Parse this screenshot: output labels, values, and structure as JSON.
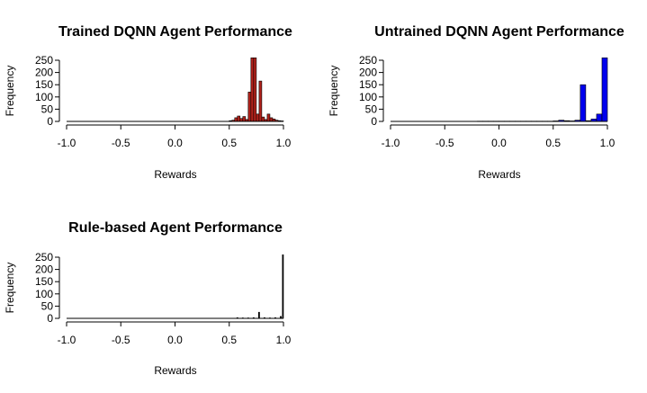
{
  "chart_data": [
    {
      "type": "histogram",
      "title": "Trained DQNN Agent Performance",
      "xlabel": "Rewards",
      "ylabel": "Frequency",
      "xlim": [
        -1.0,
        1.0
      ],
      "ylim": [
        0,
        250
      ],
      "x_ticks": [
        "-1.0",
        "-0.5",
        "0.0",
        "0.5",
        "1.0"
      ],
      "y_ticks": [
        "0",
        "50",
        "100",
        "150",
        "200",
        "250"
      ],
      "bar_color": "#b2221b",
      "bin_width": 0.025,
      "bins": [
        {
          "x0": 0.5,
          "count": 3
        },
        {
          "x0": 0.525,
          "count": 5
        },
        {
          "x0": 0.55,
          "count": 15
        },
        {
          "x0": 0.575,
          "count": 22
        },
        {
          "x0": 0.6,
          "count": 12
        },
        {
          "x0": 0.625,
          "count": 20
        },
        {
          "x0": 0.65,
          "count": 8
        },
        {
          "x0": 0.675,
          "count": 120
        },
        {
          "x0": 0.7,
          "count": 260
        },
        {
          "x0": 0.725,
          "count": 260
        },
        {
          "x0": 0.75,
          "count": 30
        },
        {
          "x0": 0.775,
          "count": 165
        },
        {
          "x0": 0.8,
          "count": 18
        },
        {
          "x0": 0.825,
          "count": 8
        },
        {
          "x0": 0.85,
          "count": 30
        },
        {
          "x0": 0.875,
          "count": 15
        },
        {
          "x0": 0.9,
          "count": 10
        },
        {
          "x0": 0.925,
          "count": 5
        },
        {
          "x0": 0.95,
          "count": 3
        },
        {
          "x0": 0.975,
          "count": 2
        }
      ]
    },
    {
      "type": "histogram",
      "title": "Untrained DQNN Agent Performance",
      "xlabel": "Rewards",
      "ylabel": "Frequency",
      "xlim": [
        -1.0,
        1.0
      ],
      "ylim": [
        0,
        250
      ],
      "x_ticks": [
        "-1.0",
        "-0.5",
        "0.0",
        "0.5",
        "1.0"
      ],
      "y_ticks": [
        "0",
        "50",
        "100",
        "150",
        "200",
        "250"
      ],
      "bar_color": "#0000ee",
      "bin_width": 0.05,
      "bins": [
        {
          "x0": -0.2,
          "count": 1
        },
        {
          "x0": -0.15,
          "count": 1
        },
        {
          "x0": -0.1,
          "count": 1
        },
        {
          "x0": -0.05,
          "count": 1
        },
        {
          "x0": 0.0,
          "count": 1
        },
        {
          "x0": 0.05,
          "count": 1
        },
        {
          "x0": 0.1,
          "count": 1
        },
        {
          "x0": 0.15,
          "count": 1
        },
        {
          "x0": 0.2,
          "count": 1
        },
        {
          "x0": 0.25,
          "count": 1
        },
        {
          "x0": 0.3,
          "count": 1
        },
        {
          "x0": 0.35,
          "count": 1
        },
        {
          "x0": 0.4,
          "count": 1
        },
        {
          "x0": 0.45,
          "count": 1
        },
        {
          "x0": 0.5,
          "count": 2
        },
        {
          "x0": 0.55,
          "count": 5
        },
        {
          "x0": 0.6,
          "count": 3
        },
        {
          "x0": 0.65,
          "count": 2
        },
        {
          "x0": 0.7,
          "count": 5
        },
        {
          "x0": 0.75,
          "count": 150
        },
        {
          "x0": 0.8,
          "count": 3
        },
        {
          "x0": 0.85,
          "count": 10
        },
        {
          "x0": 0.9,
          "count": 30
        },
        {
          "x0": 0.95,
          "count": 260
        }
      ]
    },
    {
      "type": "histogram",
      "title": "Rule-based Agent Performance",
      "xlabel": "Rewards",
      "ylabel": "Frequency",
      "xlim": [
        -1.0,
        1.0
      ],
      "ylim": [
        0,
        250
      ],
      "x_ticks": [
        "-1.0",
        "-0.5",
        "0.0",
        "0.5",
        "1.0"
      ],
      "y_ticks": [
        "0",
        "50",
        "100",
        "150",
        "200",
        "250"
      ],
      "bar_color": "#000000",
      "bin_width": 0.01,
      "bins": [
        {
          "x0": 0.57,
          "count": 3
        },
        {
          "x0": 0.62,
          "count": 2
        },
        {
          "x0": 0.67,
          "count": 2
        },
        {
          "x0": 0.72,
          "count": 3
        },
        {
          "x0": 0.77,
          "count": 25
        },
        {
          "x0": 0.82,
          "count": 3
        },
        {
          "x0": 0.87,
          "count": 2
        },
        {
          "x0": 0.92,
          "count": 3
        },
        {
          "x0": 0.97,
          "count": 8
        },
        {
          "x0": 0.99,
          "count": 260
        }
      ]
    }
  ]
}
